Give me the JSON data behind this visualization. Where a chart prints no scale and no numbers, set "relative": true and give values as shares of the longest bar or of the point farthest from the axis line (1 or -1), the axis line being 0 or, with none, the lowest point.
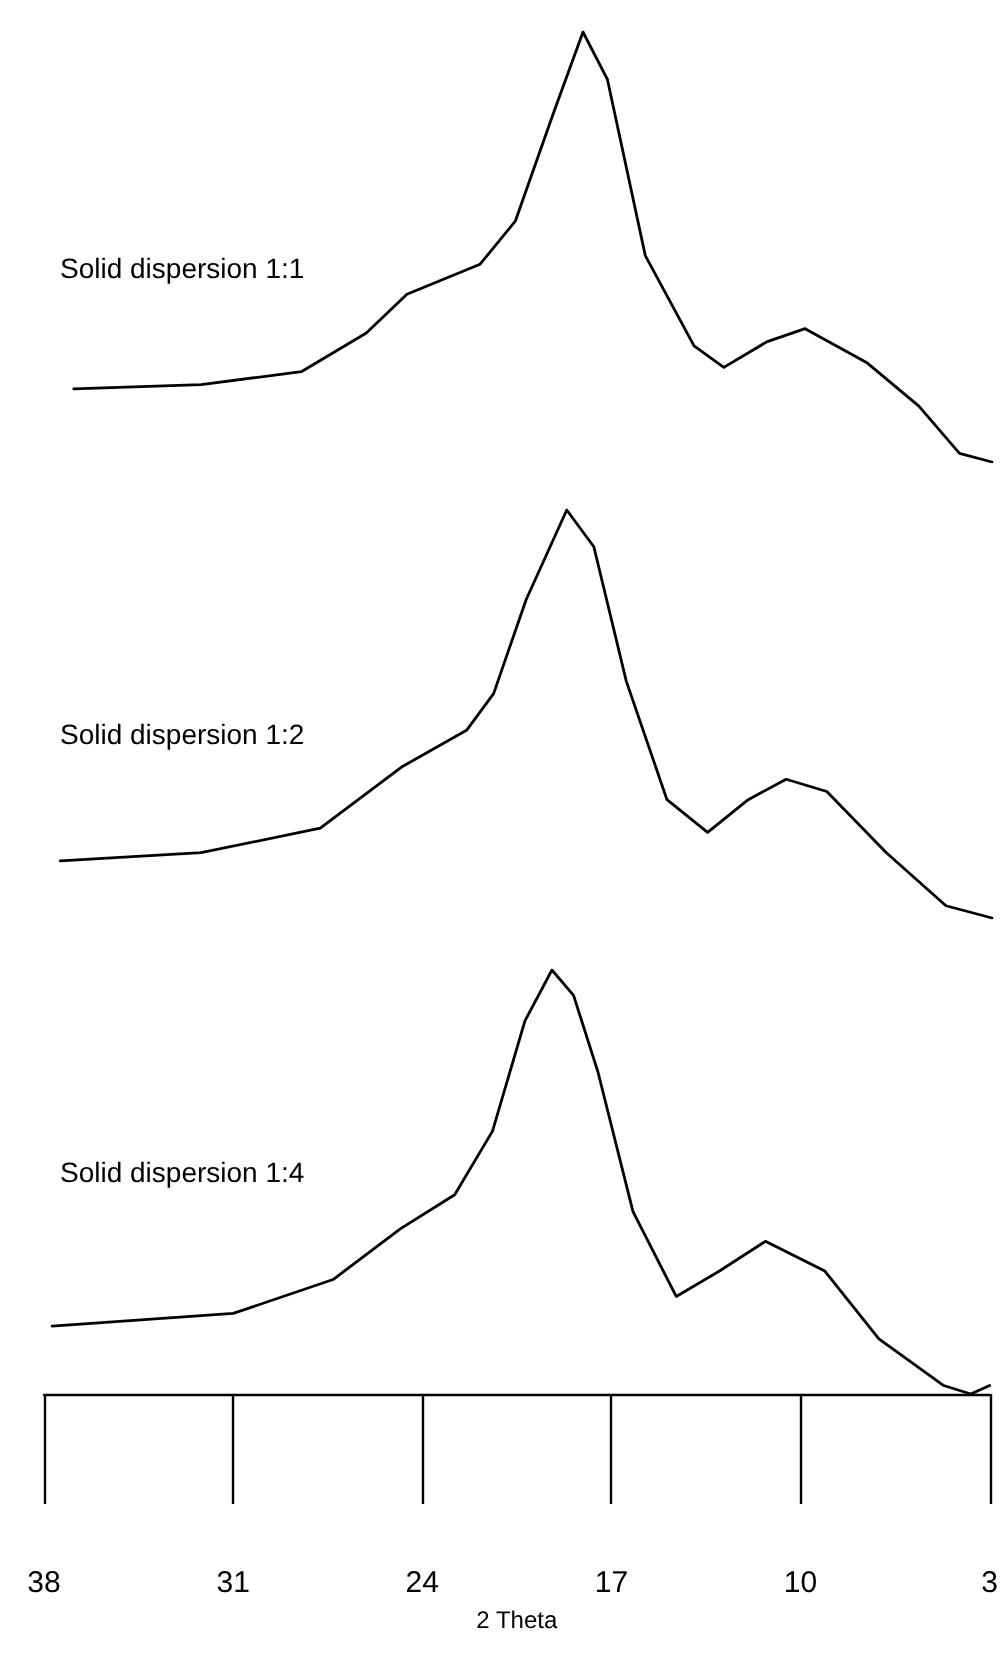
{
  "chart_data": [
    {
      "type": "line",
      "relative": true,
      "xlim": [
        38,
        3
      ],
      "tick_labels": false,
      "marker": "none",
      "line_style": "solid",
      "series": [
        {
          "name": "Solid dispersion 1:1",
          "color": "#000000",
          "x": [
            36.9,
            32.2,
            28.5,
            26.1,
            24.6,
            21.9,
            20.6,
            19.2,
            18.1,
            17.2,
            15.8,
            14.0,
            12.9,
            11.3,
            9.9,
            7.6,
            5.7,
            4.2,
            3.0
          ],
          "values": [
            0.17,
            0.18,
            0.21,
            0.3,
            0.39,
            0.46,
            0.56,
            0.81,
            1.0,
            0.89,
            0.48,
            0.27,
            0.22,
            0.28,
            0.31,
            0.23,
            0.13,
            0.02,
            0
          ]
        }
      ]
    },
    {
      "type": "line",
      "relative": true,
      "xlim": [
        38,
        3
      ],
      "tick_labels": false,
      "marker": "none",
      "line_style": "solid",
      "series": [
        {
          "name": "Solid dispersion 1:2",
          "color": "#000000",
          "x": [
            37.4,
            32.2,
            27.8,
            24.8,
            22.4,
            21.4,
            20.2,
            18.7,
            17.7,
            16.5,
            15.0,
            13.5,
            12.0,
            10.6,
            9.1,
            6.9,
            4.7,
            3.0
          ],
          "values": [
            0.14,
            0.16,
            0.22,
            0.37,
            0.46,
            0.55,
            0.78,
            1.0,
            0.91,
            0.58,
            0.29,
            0.21,
            0.29,
            0.34,
            0.31,
            0.16,
            0.03,
            0
          ]
        }
      ]
    },
    {
      "type": "line",
      "relative": true,
      "xlim": [
        38,
        3
      ],
      "xticks": [
        38,
        31,
        24,
        17,
        10,
        3
      ],
      "xlabel": "2 Theta",
      "marker": "none",
      "line_style": "solid",
      "series": [
        {
          "name": "Solid dispersion 1:4",
          "color": "#000000",
          "x": [
            37.7,
            31.0,
            27.3,
            24.8,
            22.8,
            21.4,
            20.2,
            19.2,
            18.4,
            17.5,
            16.2,
            14.6,
            13.0,
            11.3,
            9.1,
            7.1,
            4.7,
            3.7,
            3.0
          ],
          "values": [
            0.16,
            0.19,
            0.27,
            0.39,
            0.47,
            0.62,
            0.88,
            1.0,
            0.94,
            0.76,
            0.43,
            0.23,
            0.29,
            0.36,
            0.29,
            0.13,
            0.02,
            0,
            0.02
          ]
        }
      ]
    }
  ]
}
